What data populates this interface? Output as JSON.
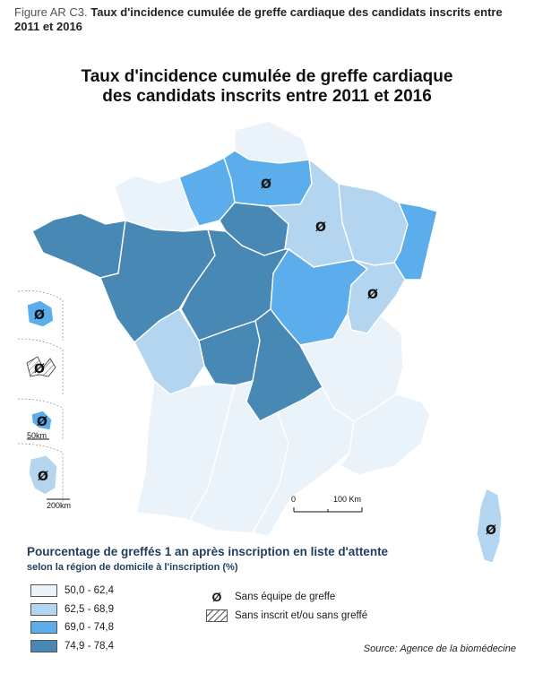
{
  "caption": {
    "figure_label": "Figure AR C3.",
    "text": "Taux d'incidence cumulée de greffe cardiaque des candidats inscrits entre 2011 et 2016"
  },
  "map_title": {
    "line1": "Taux d'incidence cumulée de greffe cardiaque",
    "line2": "des candidats inscrits entre 2011 et 2016"
  },
  "colors": {
    "class1": "#eaf2fa",
    "class2": "#b3d5ef",
    "class3": "#5badeb",
    "class4": "#4789b4"
  },
  "regions": [
    {
      "name": "Hauts-de-France (Nord)",
      "class": "class1",
      "no_team": false
    },
    {
      "name": "Haute-Normandie",
      "class": "class3",
      "no_team": false
    },
    {
      "name": "Picardie",
      "class": "class3",
      "no_team": true
    },
    {
      "name": "Basse-Normandie",
      "class": "class1",
      "no_team": false
    },
    {
      "name": "Île-de-France",
      "class": "class4",
      "no_team": false
    },
    {
      "name": "Champagne-Ardenne",
      "class": "class2",
      "no_team": true
    },
    {
      "name": "Lorraine",
      "class": "class2",
      "no_team": false
    },
    {
      "name": "Alsace",
      "class": "class3",
      "no_team": false
    },
    {
      "name": "Bretagne",
      "class": "class4",
      "no_team": false
    },
    {
      "name": "Pays de la Loire",
      "class": "class4",
      "no_team": false
    },
    {
      "name": "Centre",
      "class": "class4",
      "no_team": false
    },
    {
      "name": "Bourgogne",
      "class": "class3",
      "no_team": false
    },
    {
      "name": "Franche-Comté",
      "class": "class2",
      "no_team": true
    },
    {
      "name": "Poitou-Charentes",
      "class": "class2",
      "no_team": false
    },
    {
      "name": "Limousin",
      "class": "class4",
      "no_team": false
    },
    {
      "name": "Auvergne",
      "class": "class4",
      "no_team": false
    },
    {
      "name": "Rhône-Alpes",
      "class": "class1",
      "no_team": false
    },
    {
      "name": "Aquitaine",
      "class": "class1",
      "no_team": false
    },
    {
      "name": "Midi-Pyrénées",
      "class": "class1",
      "no_team": false
    },
    {
      "name": "Languedoc-Roussillon",
      "class": "class1",
      "no_team": false
    },
    {
      "name": "Provence-Alpes-Côte d'Azur",
      "class": "class1",
      "no_team": false
    },
    {
      "name": "Corse",
      "class": "class2",
      "no_team": true
    },
    {
      "name": "La Réunion",
      "class": "class3",
      "no_team": true
    },
    {
      "name": "Guadeloupe",
      "class": "none",
      "no_team": true
    },
    {
      "name": "Martinique",
      "class": "class3",
      "no_team": true
    },
    {
      "name": "Guyane",
      "class": "class2",
      "no_team": true
    }
  ],
  "scale": {
    "zero": "0",
    "distance": "100 Km"
  },
  "inset_scales": {
    "martinique": "50km",
    "guyane": "200km"
  },
  "legend": {
    "title": "Pourcentage de greffés 1 an après inscription en liste d'attente",
    "subtitle": "selon la région de domicile à l'inscription (%)",
    "classes": [
      {
        "label": "50,0 - 62,4",
        "color": "#eaf2fa"
      },
      {
        "label": "62,5 - 68,9",
        "color": "#b3d5ef"
      },
      {
        "label": "69,0 - 74,8",
        "color": "#5badeb"
      },
      {
        "label": "74,9 - 78,4",
        "color": "#4789b4"
      }
    ],
    "symbols": [
      {
        "glyph": "Ø",
        "label": "Sans équipe de greffe"
      },
      {
        "glyph": "",
        "label": "Sans inscrit et/ou sans greffé"
      }
    ]
  },
  "source": "Source: Agence de la biomédecine"
}
